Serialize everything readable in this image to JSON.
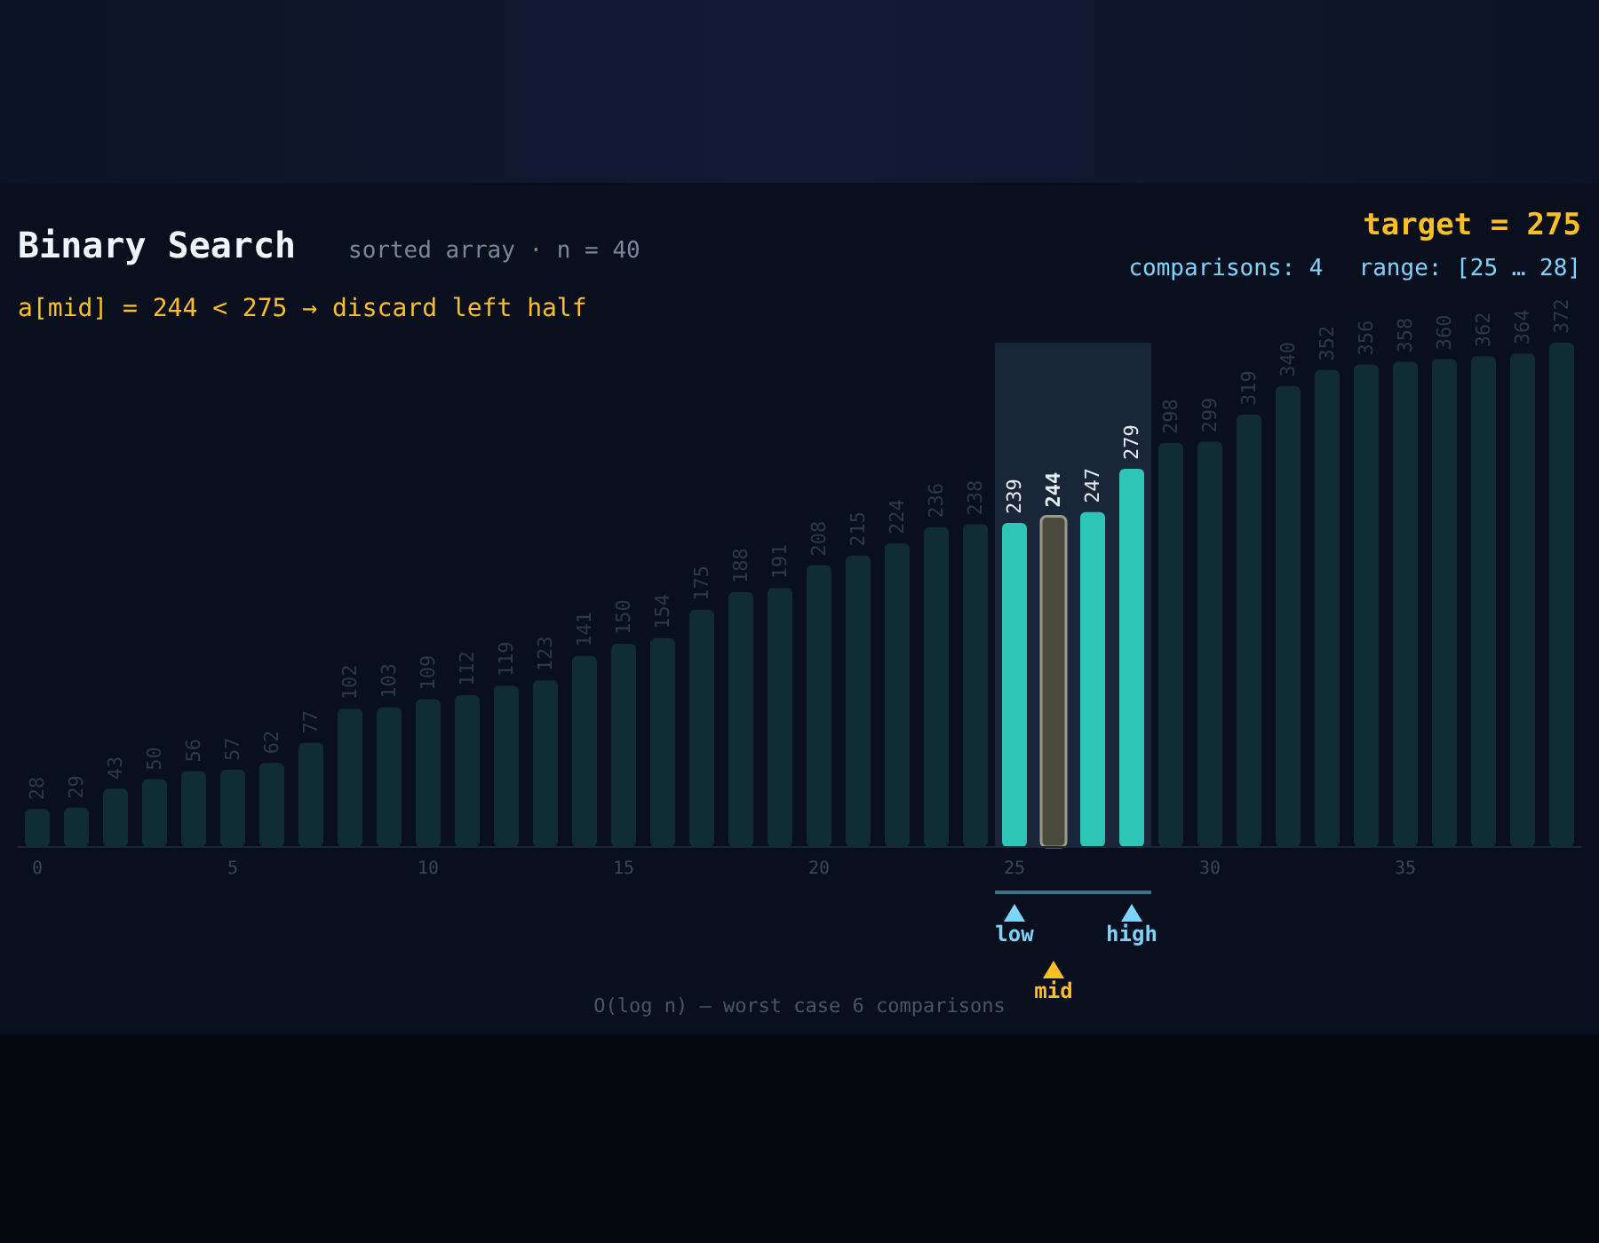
{
  "chart_data": {
    "type": "bar",
    "title": "Binary Search",
    "subtitle": "sorted array · n = 40",
    "x": [
      0,
      1,
      2,
      3,
      4,
      5,
      6,
      7,
      8,
      9,
      10,
      11,
      12,
      13,
      14,
      15,
      16,
      17,
      18,
      19,
      20,
      21,
      22,
      23,
      24,
      25,
      26,
      27,
      28,
      29,
      30,
      31,
      32,
      33,
      34,
      35,
      36,
      37,
      38,
      39
    ],
    "values": [
      28,
      29,
      43,
      50,
      56,
      57,
      62,
      77,
      102,
      103,
      109,
      112,
      119,
      123,
      141,
      150,
      154,
      175,
      188,
      191,
      208,
      215,
      224,
      236,
      238,
      239,
      244,
      247,
      279,
      298,
      299,
      319,
      340,
      352,
      356,
      358,
      360,
      362,
      364,
      372
    ],
    "colors": [
      "#0f2d33",
      "#0f2d33",
      "#0f2d33",
      "#0f2d33",
      "#0f2d33",
      "#0f2d33",
      "#0f2d33",
      "#0f2d33",
      "#0f2d33",
      "#0f2d33",
      "#0f2d33",
      "#0f2d33",
      "#0f2d33",
      "#0f2d33",
      "#0f2d33",
      "#0f2d33",
      "#0f2d33",
      "#0f2d33",
      "#0f2d33",
      "#0f2d33",
      "#0f2d33",
      "#0f2d33",
      "#0f2d33",
      "#0f2d33",
      "#0f2d33",
      "#2ec4b6",
      "#4a4a3c",
      "#2ec4b6",
      "#2ec4b6",
      "#0f2d33",
      "#0f2d33",
      "#0f2d33",
      "#0f2d33",
      "#0f2d33",
      "#0f2d33",
      "#0f2d33",
      "#0f2d33",
      "#0f2d33",
      "#0f2d33",
      "#0f2d33"
    ],
    "xlim": [
      -0.5,
      39.5
    ],
    "xticks": [
      0,
      5,
      10,
      15,
      20,
      25,
      30,
      35
    ],
    "tick_labels": "x",
    "data_labels": true,
    "bands": [
      {
        "axis": "x",
        "from": 24.5,
        "to": 28.5,
        "color": "#283d56"
      }
    ],
    "annotations": [
      "a[mid] = 244 < 275  →  discard left half",
      "target = 275",
      "comparisons: 4",
      "range: [25 … 28]",
      "low",
      "high",
      "mid",
      "O(log n) — worst case 6 comparisons"
    ]
  }
}
